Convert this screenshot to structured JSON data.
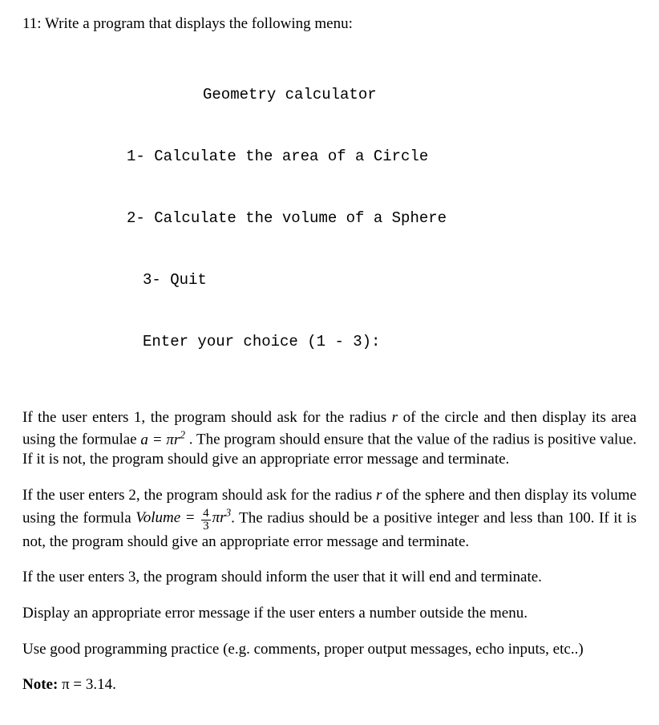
{
  "question": {
    "number": "11",
    "prompt": "Write a program that displays the following menu:"
  },
  "menu": {
    "title": "Geometry calculator",
    "line1": "1- Calculate the area of a Circle",
    "line2": "2- Calculate the volume of a Sphere",
    "line3": "3- Quit",
    "line4": "Enter your choice (1 - 3):"
  },
  "paragraphs": {
    "p1_a": "If the user enters 1, the program should ask for the radius ",
    "p1_r": "r",
    "p1_b": " of the circle and then display its area using the formulae ",
    "p1_formula_lhs": "a",
    "p1_formula_eq": " = ",
    "p1_formula_pi": "π",
    "p1_formula_r": "r",
    "p1_formula_pow": "2",
    "p1_c": " . The program should ensure that the value of the radius is positive value. If it is not, the program should give an appropriate error message and terminate.",
    "p2_a": "If the user enters 2, the program should ask for the radius ",
    "p2_r": "r",
    "p2_b": " of the sphere and then display its volume using the formula ",
    "p2_vol": "Volume",
    "p2_eq": " = ",
    "p2_num": "4",
    "p2_den": "3",
    "p2_pi": "π",
    "p2_r2": "r",
    "p2_pow": "3",
    "p2_c": ".  The radius should be a positive integer and less than 100. If it is not, the program should give an appropriate error message and terminate.",
    "p3": "If the user enters 3, the program should inform the user that it will end and terminate.",
    "p4": "Display an appropriate error message if the user enters a number outside the menu.",
    "p5": "Use good programming practice (e.g. comments, proper output messages, echo inputs, etc..)"
  },
  "note": {
    "label": "Note:",
    "body": " π = 3.14."
  }
}
